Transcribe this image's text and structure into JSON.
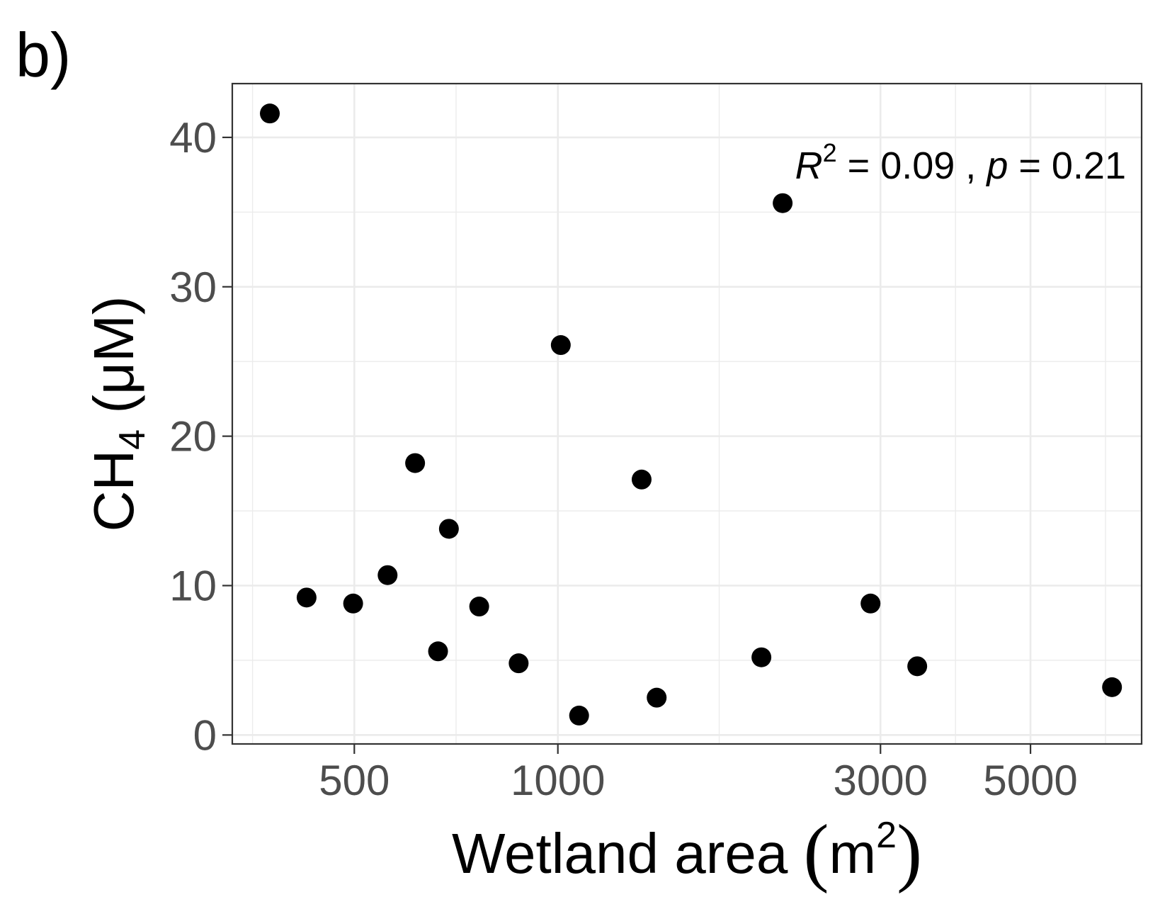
{
  "chart_data": {
    "type": "scatter",
    "panel_label": "b)",
    "xlabel": {
      "main": "Wetland area ",
      "unit": "m",
      "sup": "2"
    },
    "ylabel": {
      "main": "CH",
      "sub": "4",
      "unit": " (μM)"
    },
    "x_scale": "log",
    "xlim": [
      330,
      7300
    ],
    "ylim": [
      -0.6,
      43.6
    ],
    "x_major_ticks": [
      500,
      1000,
      3000,
      5000
    ],
    "x_tick_labels": [
      "500",
      "1000",
      "3000",
      "5000"
    ],
    "y_major_ticks": [
      0,
      10,
      20,
      30,
      40
    ],
    "y_tick_labels": [
      "0",
      "10",
      "20",
      "30",
      "40"
    ],
    "grid": true,
    "legend": "none",
    "point_color": "#000000",
    "annotation": {
      "r": "R",
      "r_sup": "2",
      "r_text": " = 0.09 , ",
      "p": "p",
      "p_text": " = 0.21"
    },
    "points": [
      {
        "x": 375,
        "y": 41.6
      },
      {
        "x": 425,
        "y": 9.2
      },
      {
        "x": 498,
        "y": 8.8
      },
      {
        "x": 560,
        "y": 10.7
      },
      {
        "x": 615,
        "y": 18.2
      },
      {
        "x": 665,
        "y": 5.6
      },
      {
        "x": 690,
        "y": 13.8
      },
      {
        "x": 765,
        "y": 8.6
      },
      {
        "x": 875,
        "y": 4.8
      },
      {
        "x": 1010,
        "y": 26.1
      },
      {
        "x": 1075,
        "y": 1.3
      },
      {
        "x": 1330,
        "y": 17.1
      },
      {
        "x": 1400,
        "y": 2.5
      },
      {
        "x": 2000,
        "y": 5.2
      },
      {
        "x": 2150,
        "y": 35.6
      },
      {
        "x": 2900,
        "y": 8.8
      },
      {
        "x": 3400,
        "y": 4.6
      },
      {
        "x": 6600,
        "y": 3.2
      }
    ]
  }
}
